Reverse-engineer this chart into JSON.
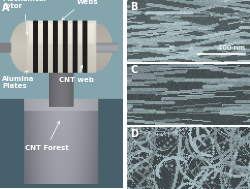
{
  "panels": {
    "A": {
      "label": "A",
      "label_color": "white",
      "bg_color": "#7a8a6a"
    },
    "B": {
      "label": "B",
      "label_color": "white",
      "scalebar_text": "400 nm",
      "bg_color": "#8a9a8a"
    },
    "C": {
      "label": "C",
      "label_color": "white",
      "bg_color": "#7a8a7a"
    },
    "D": {
      "label": "D",
      "label_color": "white",
      "bg_color": "#7a8a7a"
    }
  },
  "figure_bg": "#ffffff",
  "border_color": "white",
  "border_width": 1.5,
  "label_fontsize": 7,
  "annotation_fontsize": 5,
  "scalebar_fontsize": 5
}
